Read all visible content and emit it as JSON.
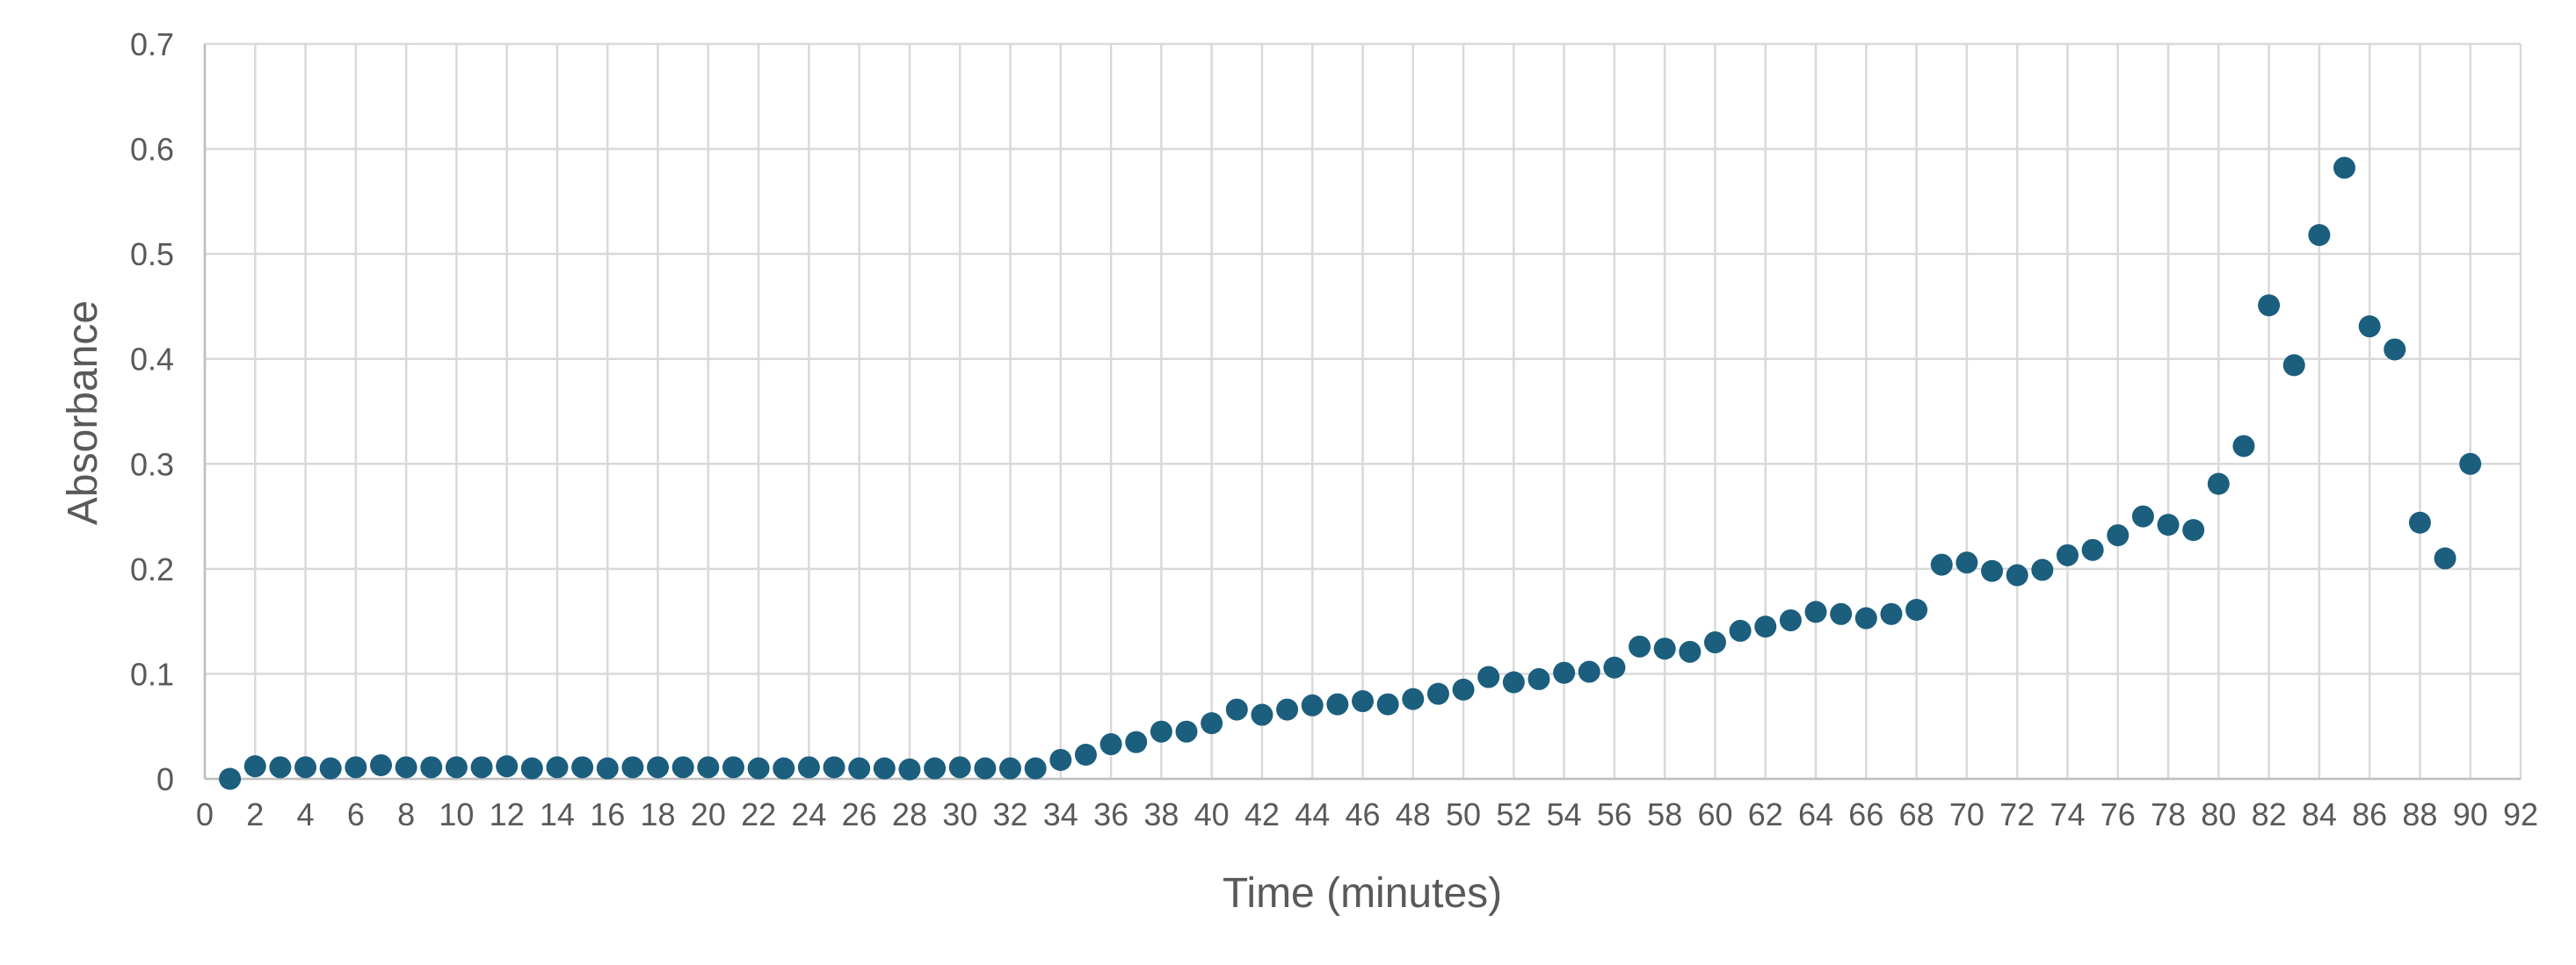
{
  "chart_data": {
    "type": "scatter",
    "title": "",
    "xlabel": "Time (minutes)",
    "ylabel": "Absorbance",
    "xlim": [
      0,
      92
    ],
    "ylim": [
      0,
      0.7
    ],
    "x_ticks": [
      "0",
      "2",
      "4",
      "6",
      "8",
      "10",
      "12",
      "14",
      "16",
      "18",
      "20",
      "22",
      "24",
      "26",
      "28",
      "30",
      "32",
      "34",
      "36",
      "38",
      "40",
      "42",
      "44",
      "46",
      "48",
      "50",
      "52",
      "54",
      "56",
      "58",
      "60",
      "62",
      "64",
      "66",
      "68",
      "70",
      "72",
      "74",
      "76",
      "78",
      "80",
      "82",
      "84",
      "86",
      "88",
      "90",
      "92"
    ],
    "y_ticks": [
      "0",
      "0.1",
      "0.2",
      "0.3",
      "0.4",
      "0.5",
      "0.6",
      "0.7"
    ],
    "grid": true,
    "legend": "none",
    "marker_color": "#1b5e7e",
    "series": [
      {
        "x": [
          1,
          2,
          3,
          4,
          5,
          6,
          7,
          8,
          9,
          10,
          11,
          12,
          13,
          14,
          15,
          16,
          17,
          18,
          19,
          20,
          21,
          22,
          23,
          24,
          25,
          26,
          27,
          28,
          29,
          30,
          31,
          32,
          33,
          34,
          35,
          36,
          37,
          38,
          39,
          40,
          41,
          42,
          43,
          44,
          45,
          46,
          47,
          48,
          49,
          50,
          51,
          52,
          53,
          54,
          55,
          56,
          57,
          58,
          59,
          60,
          61,
          62,
          63,
          64,
          65,
          66,
          67,
          68,
          69,
          70,
          71,
          72,
          73,
          74,
          75,
          76,
          77,
          78,
          79,
          80,
          81,
          82,
          83,
          84,
          85,
          86,
          87,
          88,
          89,
          90
        ],
        "y": [
          0.0,
          0.012,
          0.011,
          0.011,
          0.01,
          0.011,
          0.013,
          0.011,
          0.011,
          0.011,
          0.011,
          0.012,
          0.01,
          0.011,
          0.011,
          0.01,
          0.011,
          0.011,
          0.011,
          0.011,
          0.011,
          0.01,
          0.01,
          0.011,
          0.011,
          0.01,
          0.01,
          0.009,
          0.01,
          0.011,
          0.01,
          0.01,
          0.01,
          0.018,
          0.023,
          0.033,
          0.035,
          0.045,
          0.045,
          0.053,
          0.066,
          0.061,
          0.066,
          0.07,
          0.071,
          0.074,
          0.071,
          0.076,
          0.081,
          0.085,
          0.097,
          0.092,
          0.095,
          0.101,
          0.102,
          0.106,
          0.126,
          0.124,
          0.121,
          0.13,
          0.141,
          0.145,
          0.151,
          0.159,
          0.157,
          0.153,
          0.157,
          0.161,
          0.204,
          0.206,
          0.198,
          0.194,
          0.199,
          0.213,
          0.218,
          0.232,
          0.25,
          0.242,
          0.237,
          0.281,
          0.317,
          0.451,
          0.394,
          0.518,
          0.582,
          0.431,
          0.409,
          0.244,
          0.21,
          0.3
        ]
      }
    ]
  }
}
